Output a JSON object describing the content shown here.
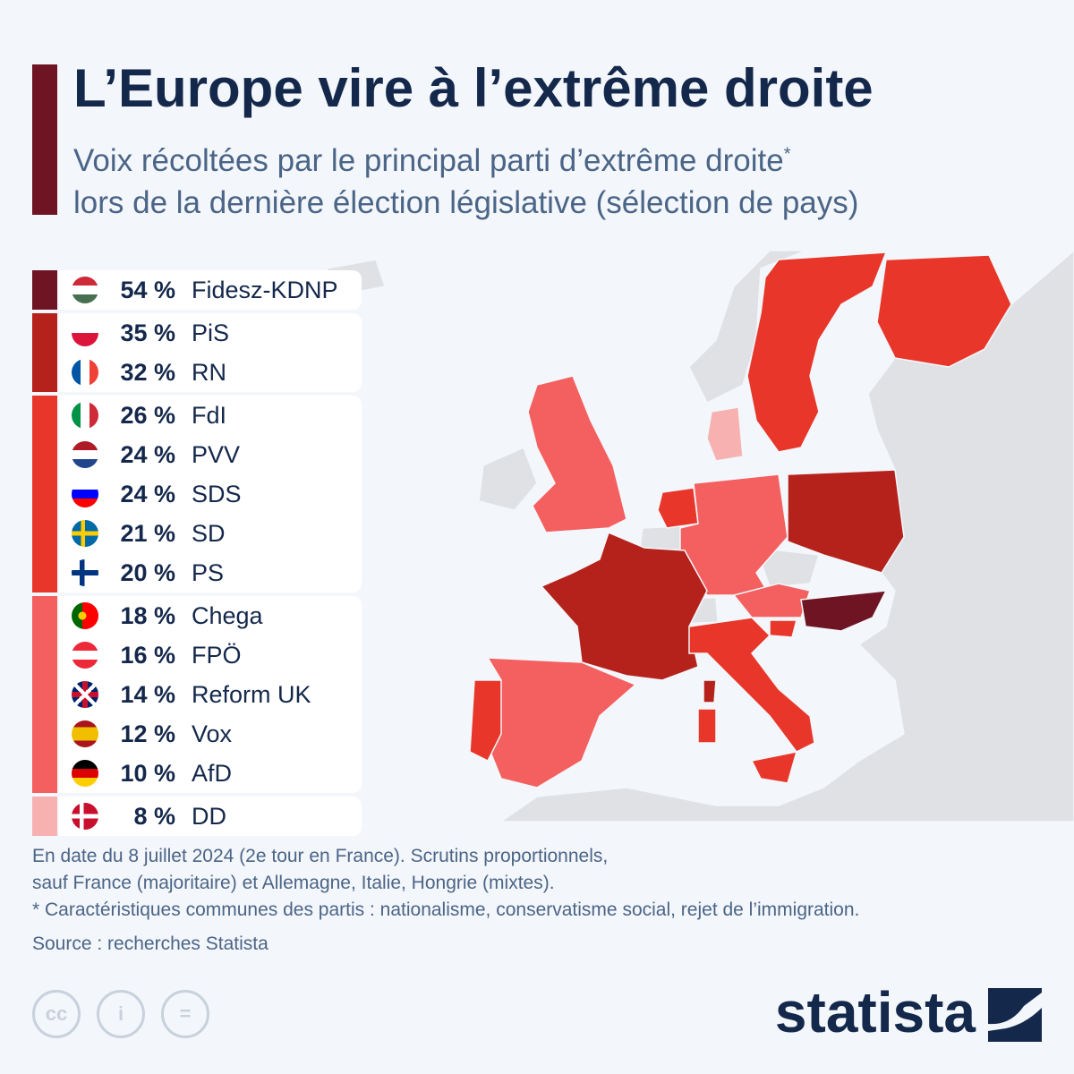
{
  "header": {
    "title": "L’Europe vire à l’extrême droite",
    "subtitle_line1": "Voix récoltées par le principal parti d’extrême droite",
    "subtitle_asterisk": "*",
    "subtitle_line2": "lors de la dernière élection législative (sélection de pays)"
  },
  "colors": {
    "bg": "#f3f6fa",
    "text": "#14284b",
    "over50": "#6e1423",
    "30to40": "#b5221c",
    "20to30": "#e8372a",
    "10to20": "#f45f5f",
    "under10": "#f7b1b1",
    "no_data": "#dfe1e4"
  },
  "chart_data": {
    "type": "table",
    "title": "L’Europe vire à l’extrême droite",
    "columns": [
      "country",
      "share_pct",
      "party"
    ],
    "groups": [
      {
        "color": "#6e1423",
        "rows": [
          {
            "flag": "hungary",
            "value": "54 %",
            "party": "Fidesz-KDNP"
          }
        ]
      },
      {
        "color": "#b5221c",
        "rows": [
          {
            "flag": "poland",
            "value": "35 %",
            "party": "PiS"
          },
          {
            "flag": "france",
            "value": "32 %",
            "party": "RN"
          }
        ]
      },
      {
        "color": "#e8372a",
        "rows": [
          {
            "flag": "italy",
            "value": "26 %",
            "party": "FdI"
          },
          {
            "flag": "netherlands",
            "value": "24 %",
            "party": "PVV"
          },
          {
            "flag": "slovenia",
            "value": "24 %",
            "party": "SDS"
          },
          {
            "flag": "sweden",
            "value": "21 %",
            "party": "SD"
          },
          {
            "flag": "finland",
            "value": "20 %",
            "party": "PS"
          }
        ]
      },
      {
        "color": "#f45f5f",
        "rows": [
          {
            "flag": "portugal",
            "value": "18 %",
            "party": "Chega"
          },
          {
            "flag": "austria",
            "value": "16 %",
            "party": "FPÖ"
          },
          {
            "flag": "uk",
            "value": "14 %",
            "party": "Reform UK"
          },
          {
            "flag": "spain",
            "value": "12 %",
            "party": "Vox"
          },
          {
            "flag": "germany",
            "value": "10 %",
            "party": "AfD"
          }
        ]
      },
      {
        "color": "#f7b1b1",
        "rows": [
          {
            "flag": "denmark",
            "value": "8 %",
            "party": "DD"
          }
        ]
      }
    ]
  },
  "footer": {
    "note1": "En date du 8 juillet 2024 (2e tour en France). Scrutins proportionnels,",
    "note2": "sauf France (majoritaire) et Allemagne, Italie, Hongrie (mixtes).",
    "note3": "* Caractéristiques communes des partis : nationalisme, conservatisme social, rejet de l’immigration.",
    "source": "Source : recherches Statista",
    "cc": "cc",
    "by": "i",
    "nd": "=",
    "brand": "statista"
  }
}
